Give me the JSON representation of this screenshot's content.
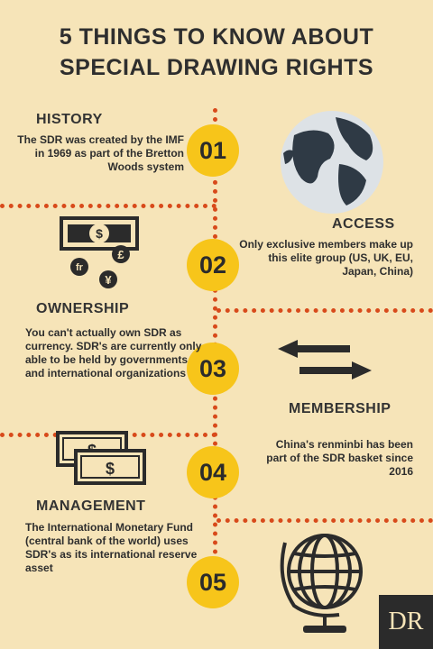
{
  "title": {
    "line1": "5 THINGS TO KNOW ABOUT",
    "line2": "SPECIAL DRAWING RIGHTS"
  },
  "items": [
    {
      "number": "01",
      "heading": "HISTORY",
      "text": "The SDR was created by the IMF in 1969 as part of the Bretton Woods system"
    },
    {
      "number": "02",
      "heading": "ACCESS",
      "text": "Only exclusive members make up this elite group (US, UK, EU, Japan, China)"
    },
    {
      "number": "03",
      "heading": "OWNERSHIP",
      "text": "You can't actually own SDR as currency. SDR's are currently only able to be held by governments and international organizations"
    },
    {
      "number": "04",
      "heading": "MEMBERSHIP",
      "text": "China's renminbi has been part of the SDR basket since 2016"
    },
    {
      "number": "05",
      "heading": "MANAGEMENT",
      "text": "The International Monetary Fund (central bank of the world) uses SDR's as its international reserve asset"
    }
  ],
  "logo": {
    "text": "DR"
  },
  "colors": {
    "background": "#f6e4b8",
    "accent": "#f7c51a",
    "dots": "#d84a1b",
    "text": "#2e2e2e"
  },
  "icons": [
    "globe-icon",
    "currency-symbols-icon",
    "exchange-arrows-icon",
    "banknotes-icon",
    "desk-globe-icon"
  ]
}
